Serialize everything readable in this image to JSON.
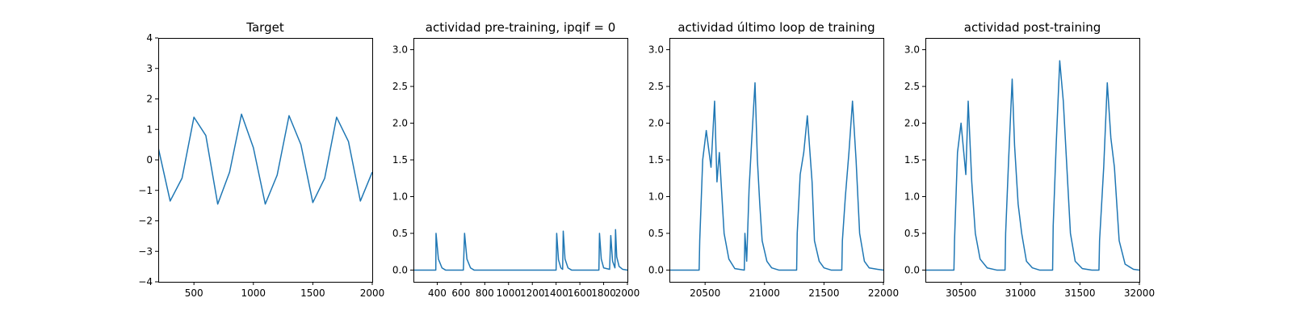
{
  "colors": {
    "series": "#1f77b4",
    "axes": "#000000",
    "background": "#ffffff"
  },
  "chart_data": [
    {
      "type": "line",
      "title": "Target",
      "xlim": [
        200,
        2000
      ],
      "ylim": [
        -4,
        4
      ],
      "xticks": [
        500,
        1000,
        1500,
        2000
      ],
      "yticks": [
        -4,
        -3,
        -2,
        -1,
        0,
        1,
        2,
        3,
        4
      ],
      "grid": false,
      "series": [
        {
          "x": [
            200,
            300,
            400,
            500,
            600,
            700,
            800,
            900,
            1000,
            1100,
            1200,
            1300,
            1400,
            1500,
            1600,
            1700,
            1800,
            1900,
            2000
          ],
          "y": [
            0.4,
            -1.35,
            -0.6,
            1.4,
            0.8,
            -1.45,
            -0.4,
            1.5,
            0.4,
            -1.45,
            -0.5,
            1.45,
            0.5,
            -1.4,
            -0.6,
            1.4,
            0.6,
            -1.35,
            -0.4
          ]
        }
      ]
    },
    {
      "type": "line",
      "title": "actividad pre-training, ipqif = 0",
      "xlim": [
        200,
        2000
      ],
      "ylim": [
        -0.16,
        3.16
      ],
      "xticks": [
        400,
        600,
        800,
        1000,
        1200,
        1400,
        1600,
        1800,
        2000
      ],
      "yticks": [
        0.0,
        0.5,
        1.0,
        1.5,
        2.0,
        2.5,
        3.0
      ],
      "grid": false,
      "series": [
        {
          "x": [
            200,
            388,
            390,
            410,
            440,
            470,
            620,
            630,
            650,
            680,
            710,
            1400,
            1405,
            1420,
            1440,
            1455,
            1460,
            1475,
            1500,
            1530,
            1760,
            1765,
            1780,
            1800,
            1850,
            1860,
            1875,
            1895,
            1900,
            1910,
            1930,
            1960,
            2000
          ],
          "y": [
            0,
            0,
            0.5,
            0.15,
            0.03,
            0,
            0,
            0.5,
            0.15,
            0.03,
            0,
            0,
            0.5,
            0.14,
            0.03,
            0.01,
            0.53,
            0.15,
            0.03,
            0,
            0,
            0.5,
            0.15,
            0.03,
            0.01,
            0.47,
            0.12,
            0.03,
            0.55,
            0.18,
            0.05,
            0.01,
            0
          ]
        }
      ]
    },
    {
      "type": "line",
      "title": "actividad último loop de training",
      "xlim": [
        20200,
        22000
      ],
      "ylim": [
        -0.16,
        3.16
      ],
      "xticks": [
        20500,
        21000,
        21500,
        22000
      ],
      "yticks": [
        0.0,
        0.5,
        1.0,
        1.5,
        2.0,
        2.5,
        3.0
      ],
      "grid": false,
      "series": [
        {
          "x": [
            20200,
            20450,
            20455,
            20480,
            20510,
            20550,
            20580,
            20600,
            20620,
            20660,
            20700,
            20750,
            20830,
            20835,
            20850,
            20870,
            20890,
            20920,
            20940,
            20960,
            20980,
            21020,
            21060,
            21120,
            21270,
            21275,
            21300,
            21330,
            21360,
            21400,
            21420,
            21460,
            21500,
            21560,
            21650,
            21655,
            21680,
            21710,
            21740,
            21770,
            21800,
            21840,
            21880,
            21950,
            22000
          ],
          "y": [
            0,
            0,
            0.4,
            1.5,
            1.9,
            1.4,
            2.3,
            1.2,
            1.6,
            0.5,
            0.15,
            0.02,
            0,
            0.5,
            0.12,
            1.1,
            1.7,
            2.55,
            1.5,
            0.9,
            0.4,
            0.12,
            0.03,
            0,
            0,
            0.5,
            1.3,
            1.6,
            2.1,
            1.2,
            0.4,
            0.12,
            0.03,
            0,
            0,
            0.4,
            1.0,
            1.6,
            2.3,
            1.5,
            0.5,
            0.12,
            0.03,
            0.01,
            0
          ]
        }
      ]
    },
    {
      "type": "line",
      "title": "actividad post-training",
      "xlim": [
        30200,
        32000
      ],
      "ylim": [
        -0.16,
        3.16
      ],
      "xticks": [
        30500,
        31000,
        31500,
        32000
      ],
      "yticks": [
        0.0,
        0.5,
        1.0,
        1.5,
        2.0,
        2.5,
        3.0
      ],
      "grid": false,
      "series": [
        {
          "x": [
            30200,
            30440,
            30445,
            30470,
            30500,
            30540,
            30560,
            30590,
            30620,
            30660,
            30720,
            30800,
            30870,
            30875,
            30900,
            30930,
            30950,
            30980,
            31010,
            31050,
            31100,
            31160,
            31270,
            31275,
            31300,
            31330,
            31360,
            31390,
            31420,
            31460,
            31520,
            31600,
            31660,
            31665,
            31700,
            31730,
            31760,
            31790,
            31830,
            31880,
            31950,
            32000
          ],
          "y": [
            0,
            0,
            0.4,
            1.6,
            2.0,
            1.3,
            2.3,
            1.2,
            0.5,
            0.15,
            0.03,
            0,
            0,
            0.5,
            1.5,
            2.6,
            1.7,
            0.9,
            0.5,
            0.12,
            0.03,
            0,
            0,
            0.6,
            1.7,
            2.85,
            2.3,
            1.4,
            0.5,
            0.12,
            0.02,
            0,
            0,
            0.4,
            1.4,
            2.55,
            1.8,
            1.4,
            0.4,
            0.08,
            0.01,
            0
          ]
        }
      ]
    }
  ]
}
